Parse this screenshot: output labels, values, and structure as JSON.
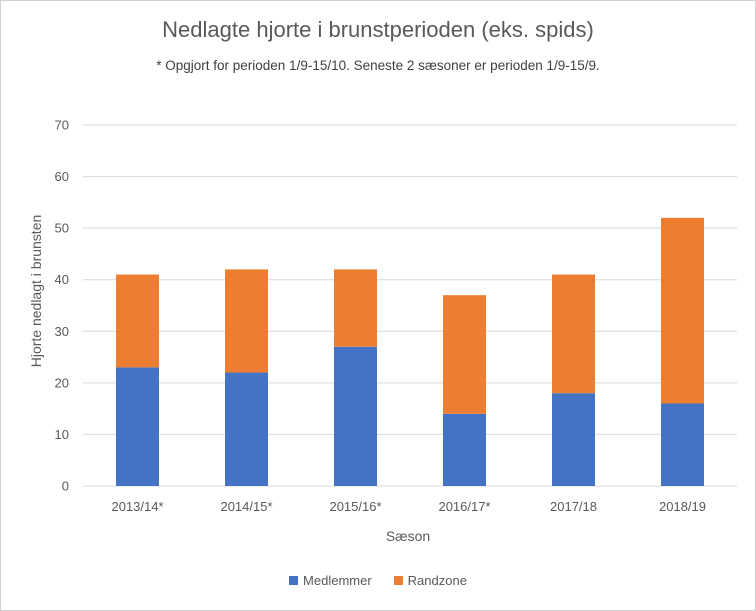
{
  "chart_data": {
    "type": "bar",
    "stacked": true,
    "title": "Nedlagte hjorte i brunstperioden (eks. spids)",
    "subtitle": "* Opgjort for perioden 1/9-15/10. Seneste 2 sæsoner er perioden 1/9-15/9.",
    "xlabel": "Sæson",
    "ylabel": "Hjorte nedlagt i brunsten",
    "categories": [
      "2013/14*",
      "2014/15*",
      "2015/16*",
      "2016/17*",
      "2017/18",
      "2018/19"
    ],
    "series": [
      {
        "name": "Medlemmer",
        "color": "#4472C4",
        "values": [
          23,
          22,
          27,
          14,
          18,
          16
        ]
      },
      {
        "name": "Randzone",
        "color": "#ED7D31",
        "values": [
          18,
          20,
          15,
          23,
          23,
          36
        ]
      }
    ],
    "ylim": [
      0,
      70
    ],
    "yticks": [
      0,
      10,
      20,
      30,
      40,
      50,
      60,
      70
    ],
    "grid": true,
    "legend_position": "bottom"
  }
}
